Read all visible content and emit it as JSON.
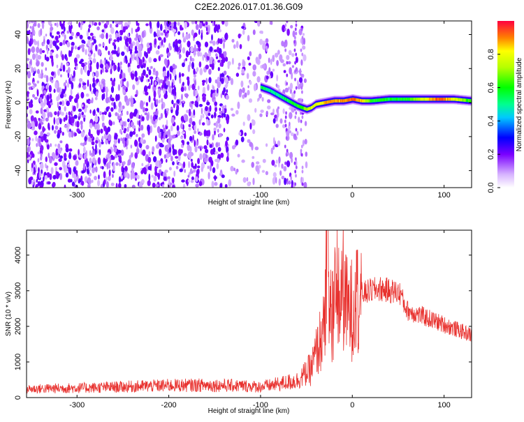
{
  "title": "C2E2.2026.017.01.36.G09",
  "colors": {
    "snr_line": "#e8312e",
    "noise": "#7a2be8",
    "noise_light": "#c9a6f5"
  },
  "chart_data": [
    {
      "type": "heatmap",
      "name": "spectrogram",
      "xlabel": "Height of straight line (km)",
      "ylabel": "Frequency (Hz)",
      "xlim": [
        -355,
        130
      ],
      "ylim": [
        -50,
        48
      ],
      "xticks": [
        -300,
        -200,
        -100,
        0,
        100
      ],
      "yticks": [
        -40,
        -20,
        0,
        20,
        40
      ],
      "colorbar": {
        "label": "Normalized spectral amplitude",
        "range": [
          0.0,
          1.0
        ],
        "ticks": [
          0.0,
          0.2,
          0.4,
          0.6,
          0.8
        ]
      },
      "noise_region_km": [
        -355,
        -50
      ],
      "signal_trace": {
        "x_km": [
          -100,
          -90,
          -80,
          -70,
          -60,
          -50,
          -45,
          -40,
          -30,
          -20,
          -10,
          0,
          10,
          20,
          40,
          60,
          80,
          95,
          110,
          130
        ],
        "freq_hz": [
          9,
          7,
          4,
          1,
          -2,
          -4,
          -3,
          -1,
          0,
          1,
          1,
          2,
          1,
          1,
          2,
          2,
          2,
          2,
          2,
          1
        ],
        "amplitude": [
          0.55,
          0.5,
          0.5,
          0.55,
          0.6,
          0.7,
          0.75,
          0.8,
          0.85,
          0.9,
          0.9,
          0.95,
          0.85,
          0.6,
          0.55,
          0.6,
          0.8,
          0.95,
          0.8,
          0.6
        ]
      }
    },
    {
      "type": "line",
      "name": "snr",
      "xlabel": "Height of straight line (km)",
      "ylabel": "SNR (10 * v/v)",
      "xlim": [
        -355,
        130
      ],
      "ylim": [
        0,
        4700
      ],
      "xticks": [
        -300,
        -200,
        -100,
        0,
        100
      ],
      "yticks": [
        0,
        1000,
        2000,
        3000,
        4000
      ],
      "series": [
        {
          "name": "SNR",
          "x": [
            -355,
            -320,
            -280,
            -240,
            -200,
            -160,
            -120,
            -100,
            -80,
            -60,
            -50,
            -45,
            -40,
            -35,
            -30,
            -27,
            -25,
            -20,
            -15,
            -10,
            -5,
            0,
            5,
            10,
            20,
            30,
            40,
            50,
            54,
            55,
            60,
            70,
            80,
            90,
            100,
            110,
            120,
            130
          ],
          "y": [
            240,
            260,
            280,
            310,
            340,
            350,
            330,
            300,
            380,
            480,
            700,
            800,
            1200,
            1600,
            1900,
            4650,
            2200,
            2600,
            2700,
            3100,
            2400,
            2500,
            2800,
            2900,
            3000,
            3050,
            3000,
            2950,
            2900,
            2700,
            2450,
            2350,
            2250,
            2150,
            2050,
            1950,
            1850,
            1750
          ]
        }
      ]
    }
  ]
}
